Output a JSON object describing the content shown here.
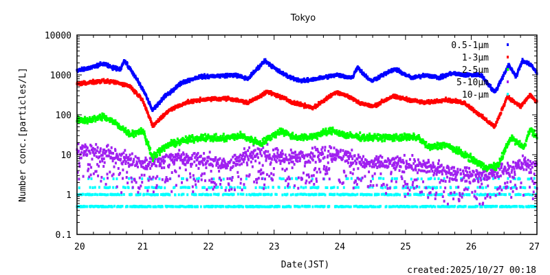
{
  "chart_data": {
    "type": "scatter",
    "title": "Tokyo",
    "xlabel": "Date(JST)",
    "ylabel": "Number conc.[particles/L]",
    "yscale": "log",
    "xlim": [
      20,
      27
    ],
    "ylim": [
      0.1,
      10000
    ],
    "x_ticks": [
      20,
      21,
      22,
      23,
      24,
      25,
      26,
      27
    ],
    "x_tick_labels": [
      "20",
      "21",
      "22",
      "23",
      "24",
      "25",
      "26",
      "27"
    ],
    "y_ticks": [
      0.1,
      1,
      10,
      100,
      1000,
      10000
    ],
    "y_tick_labels": [
      "0.1",
      "1",
      "10",
      "100",
      "1000",
      "10000"
    ],
    "grid": false,
    "legend_position": "top-right",
    "footer": "created:2025/10/27 00:18",
    "series": [
      {
        "name": "0.5-1µm",
        "legend_prefix": "0.5-1",
        "legend_unit": "µm",
        "color": "#0000ff",
        "spread": 0.06,
        "points": [
          [
            20.0,
            1260
          ],
          [
            20.2,
            1500
          ],
          [
            20.4,
            1900
          ],
          [
            20.55,
            1500
          ],
          [
            20.66,
            1400
          ],
          [
            20.72,
            2300
          ],
          [
            20.87,
            1000
          ],
          [
            21.03,
            355
          ],
          [
            21.15,
            130
          ],
          [
            21.34,
            290
          ],
          [
            21.6,
            650
          ],
          [
            21.86,
            900
          ],
          [
            22.18,
            950
          ],
          [
            22.4,
            1000
          ],
          [
            22.6,
            800
          ],
          [
            22.86,
            2300
          ],
          [
            23.05,
            1300
          ],
          [
            23.22,
            900
          ],
          [
            23.43,
            700
          ],
          [
            23.64,
            800
          ],
          [
            23.95,
            1000
          ],
          [
            24.19,
            850
          ],
          [
            24.27,
            1600
          ],
          [
            24.35,
            1100
          ],
          [
            24.48,
            700
          ],
          [
            24.65,
            1000
          ],
          [
            24.84,
            1400
          ],
          [
            25.1,
            830
          ],
          [
            25.31,
            1000
          ],
          [
            25.52,
            850
          ],
          [
            25.7,
            1100
          ],
          [
            25.89,
            1000
          ],
          [
            26.15,
            1000
          ],
          [
            26.36,
            360
          ],
          [
            26.57,
            1800
          ],
          [
            26.68,
            900
          ],
          [
            26.78,
            2300
          ],
          [
            26.9,
            1800
          ],
          [
            27.0,
            1150
          ]
        ]
      },
      {
        "name": "1-3µm",
        "legend_prefix": "1-3",
        "legend_unit": "µm",
        "color": "#ff0000",
        "spread": 0.06,
        "points": [
          [
            20.0,
            600
          ],
          [
            20.2,
            650
          ],
          [
            20.4,
            700
          ],
          [
            20.6,
            650
          ],
          [
            20.8,
            530
          ],
          [
            21.0,
            240
          ],
          [
            21.15,
            52
          ],
          [
            21.4,
            130
          ],
          [
            21.65,
            200
          ],
          [
            21.9,
            240
          ],
          [
            22.3,
            260
          ],
          [
            22.6,
            200
          ],
          [
            22.9,
            380
          ],
          [
            23.1,
            280
          ],
          [
            23.3,
            200
          ],
          [
            23.6,
            150
          ],
          [
            23.95,
            380
          ],
          [
            24.15,
            280
          ],
          [
            24.3,
            200
          ],
          [
            24.5,
            160
          ],
          [
            24.8,
            290
          ],
          [
            25.05,
            240
          ],
          [
            25.3,
            200
          ],
          [
            25.6,
            240
          ],
          [
            25.9,
            200
          ],
          [
            26.2,
            80
          ],
          [
            26.36,
            50
          ],
          [
            26.55,
            290
          ],
          [
            26.75,
            160
          ],
          [
            26.9,
            320
          ],
          [
            27.0,
            200
          ]
        ]
      },
      {
        "name": "2-5µm",
        "legend_prefix": "2-5",
        "legend_unit": "µm",
        "color": "#00ff00",
        "spread": 0.12,
        "points": [
          [
            20.0,
            72
          ],
          [
            20.2,
            75
          ],
          [
            20.4,
            90
          ],
          [
            20.6,
            60
          ],
          [
            20.8,
            33
          ],
          [
            21.0,
            40
          ],
          [
            21.15,
            9
          ],
          [
            21.4,
            18
          ],
          [
            21.6,
            22
          ],
          [
            21.9,
            27
          ],
          [
            22.2,
            25
          ],
          [
            22.5,
            30
          ],
          [
            22.8,
            19
          ],
          [
            23.1,
            40
          ],
          [
            23.3,
            28
          ],
          [
            23.5,
            27
          ],
          [
            23.9,
            40
          ],
          [
            24.1,
            30
          ],
          [
            24.4,
            27
          ],
          [
            24.8,
            27
          ],
          [
            25.2,
            27
          ],
          [
            25.35,
            15
          ],
          [
            25.6,
            18
          ],
          [
            25.9,
            10
          ],
          [
            26.2,
            5
          ],
          [
            26.4,
            5
          ],
          [
            26.6,
            27
          ],
          [
            26.8,
            15
          ],
          [
            26.9,
            45
          ],
          [
            27.0,
            27
          ]
        ]
      },
      {
        "name": "5-10µm",
        "legend_prefix": "5-10",
        "legend_unit": "µm",
        "color": "#a020f0",
        "spread": 0.28,
        "points": [
          [
            20.0,
            12
          ],
          [
            20.3,
            13
          ],
          [
            20.6,
            9
          ],
          [
            20.9,
            7
          ],
          [
            21.1,
            6
          ],
          [
            21.4,
            8
          ],
          [
            21.7,
            8
          ],
          [
            22.0,
            7
          ],
          [
            22.3,
            6
          ],
          [
            22.6,
            9
          ],
          [
            22.9,
            11
          ],
          [
            23.2,
            8
          ],
          [
            23.5,
            9
          ],
          [
            23.8,
            12
          ],
          [
            24.1,
            9
          ],
          [
            24.4,
            6
          ],
          [
            24.7,
            6
          ],
          [
            25.0,
            6
          ],
          [
            25.3,
            5
          ],
          [
            25.6,
            4
          ],
          [
            25.9,
            3
          ],
          [
            26.2,
            3
          ],
          [
            26.5,
            4
          ],
          [
            26.8,
            6
          ],
          [
            27.0,
            5
          ]
        ]
      },
      {
        "name": "10-µm",
        "legend_prefix": "10-",
        "legend_unit": "µm",
        "color": "#00ffff",
        "spread": 0,
        "levels": [
          0.5,
          1,
          1.5,
          2.5
        ]
      }
    ]
  }
}
